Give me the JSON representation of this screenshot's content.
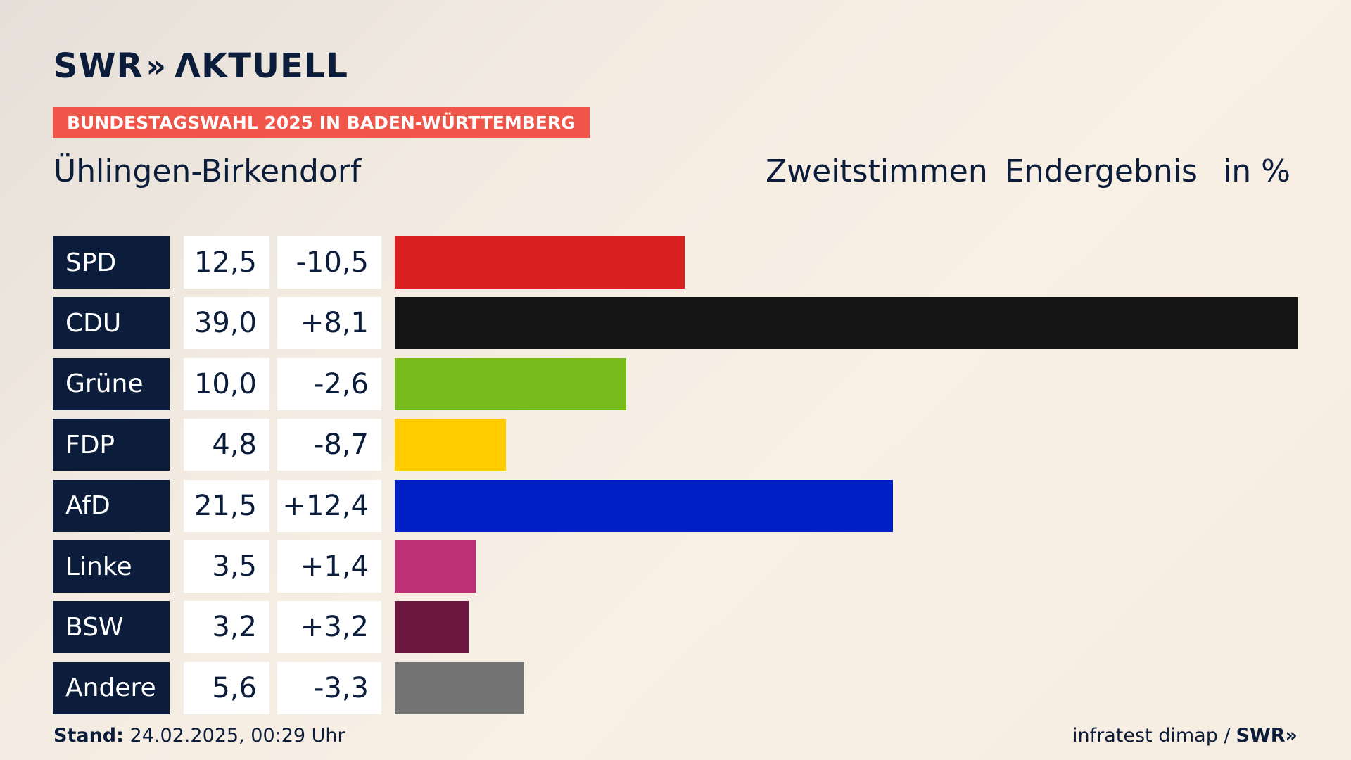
{
  "brand": {
    "name": "SWR",
    "chevrons": "»",
    "section": "ΛKTUELL"
  },
  "banner": "BUNDESTAGSWAHL 2025 IN BADEN-WÜRTTEMBERG",
  "place": "Ühlingen-Birkendorf",
  "headers": {
    "vote": "Zweitstimmen",
    "status": "Endergebnis",
    "unit": "in %"
  },
  "footer": {
    "stand_label": "Stand:",
    "stand_value": "24.02.2025, 00:29 Uhr",
    "source": "infratest dimap /",
    "source_logo": "SWR»"
  },
  "chart_data": {
    "type": "bar",
    "orientation": "horizontal",
    "categories": [
      "SPD",
      "CDU",
      "Grüne",
      "FDP",
      "AfD",
      "Linke",
      "BSW",
      "Andere"
    ],
    "values": [
      12.5,
      39.0,
      10.0,
      4.8,
      21.5,
      3.5,
      3.2,
      5.6
    ],
    "value_labels": [
      "12,5",
      "39,0",
      "10,0",
      "4,8",
      "21,5",
      "3,5",
      "3,2",
      "5,6"
    ],
    "diff_labels": [
      "-10,5",
      "+8,1",
      "-2,6",
      "-8,7",
      "+12,4",
      "+1,4",
      "+3,2",
      "-3,3"
    ],
    "colors": [
      "#d92122",
      "#141414",
      "#78bc1b",
      "#ffcc00",
      "#001fc6",
      "#bd3075",
      "#6b1740",
      "#737373"
    ],
    "unit": "in %"
  }
}
